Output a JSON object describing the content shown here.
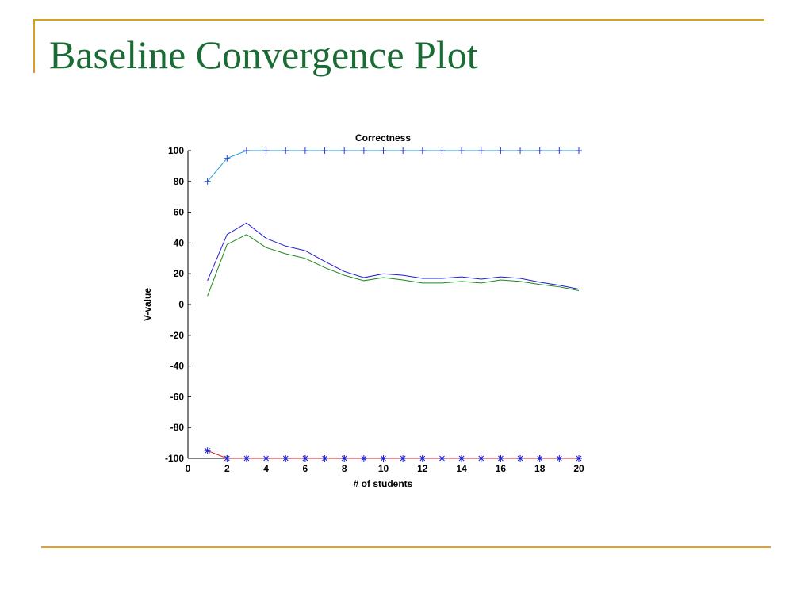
{
  "slide": {
    "title": "Baseline Convergence Plot",
    "accent_color": "#d8a020",
    "title_color": "#1b6b35"
  },
  "chart_data": {
    "type": "line",
    "title": "Correctness",
    "xlabel": "# of students",
    "ylabel": "V-value",
    "xlim": [
      0,
      20
    ],
    "ylim": [
      -100,
      100
    ],
    "xticks": [
      0,
      2,
      4,
      6,
      8,
      10,
      12,
      14,
      16,
      18,
      20
    ],
    "yticks": [
      -100,
      -80,
      -60,
      -40,
      -20,
      0,
      20,
      40,
      60,
      80,
      100
    ],
    "grid": false,
    "x": [
      1,
      2,
      3,
      4,
      5,
      6,
      7,
      8,
      9,
      10,
      11,
      12,
      13,
      14,
      15,
      16,
      17,
      18,
      19,
      20
    ],
    "series": [
      {
        "color": "#1f9fd8",
        "marker": "plus",
        "marker_color": "#1f3fd8",
        "values": [
          80,
          95,
          100,
          100,
          100,
          100,
          100,
          100,
          100,
          100,
          100,
          100,
          100,
          100,
          100,
          100,
          100,
          100,
          100,
          100
        ]
      },
      {
        "color": "#1c1cd0",
        "marker": "none",
        "values": [
          15.5,
          45.5,
          53,
          43,
          38,
          35,
          28,
          21.5,
          17.5,
          20,
          19,
          17,
          17,
          18,
          16.5,
          18,
          17,
          14.5,
          12.5,
          10
        ]
      },
      {
        "color": "#1a8a1a",
        "marker": "none",
        "values": [
          5.5,
          39,
          45.5,
          37,
          33,
          30,
          24,
          19,
          15.5,
          17.5,
          16,
          14,
          14,
          15,
          14,
          16,
          15,
          13,
          11.5,
          9
        ]
      },
      {
        "color": "#d81c1c",
        "marker": "star",
        "marker_color": "#1c1cd8",
        "values": [
          -95,
          -100,
          -100,
          -100,
          -100,
          -100,
          -100,
          -100,
          -100,
          -100,
          -100,
          -100,
          -100,
          -100,
          -100,
          -100,
          -100,
          -100,
          -100,
          -100
        ]
      }
    ]
  }
}
